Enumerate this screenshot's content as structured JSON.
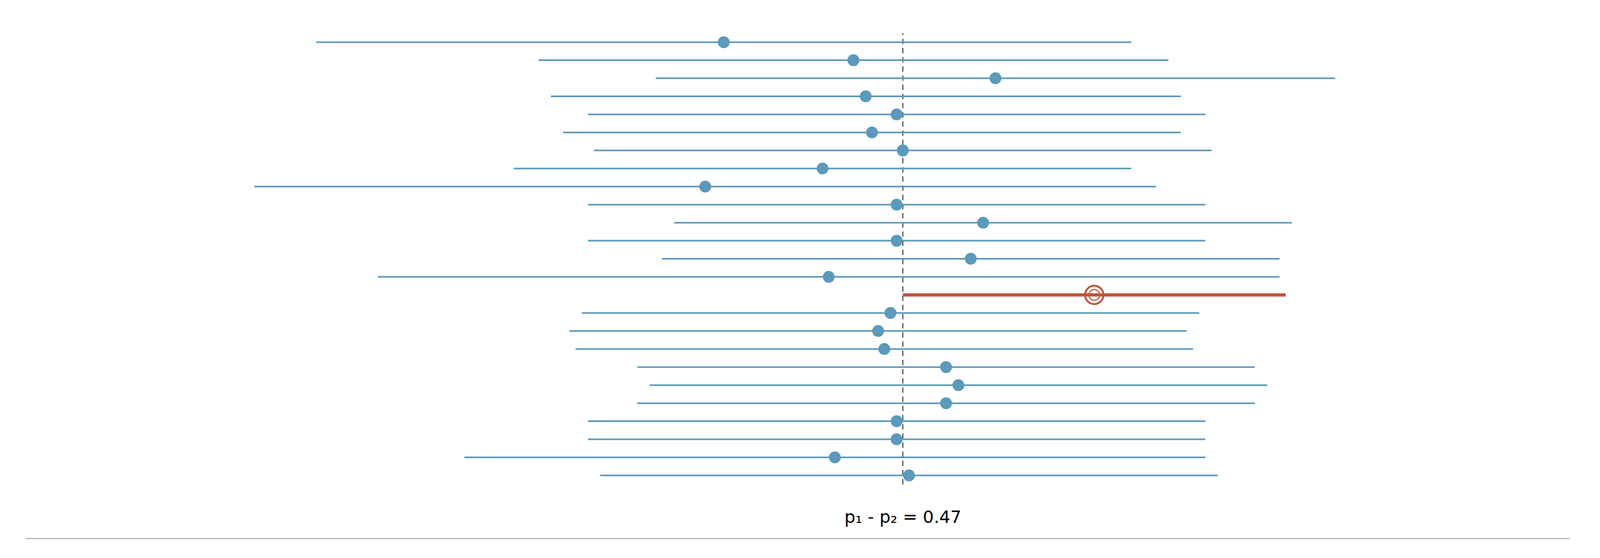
{
  "chart_data": {
    "type": "interval",
    "annotation": "p₁ - p₂ = 0.47",
    "values": [
      0.18,
      0.39,
      0.62,
      0.41,
      0.46,
      0.42,
      0.47,
      0.34,
      0.15,
      0.46,
      0.6,
      0.46,
      0.58,
      0.35,
      0.78,
      0.45,
      0.43,
      0.44,
      0.54,
      0.56,
      0.54,
      0.46,
      0.46,
      0.36,
      0.48
    ],
    "lower": [
      -0.48,
      -0.12,
      0.07,
      -0.1,
      -0.04,
      -0.08,
      -0.03,
      -0.16,
      -0.58,
      -0.04,
      0.1,
      -0.04,
      0.08,
      -0.38,
      0.47,
      -0.05,
      -0.07,
      -0.06,
      0.04,
      0.06,
      0.04,
      -0.04,
      -0.04,
      -0.24,
      -0.02
    ],
    "upper": [
      0.84,
      0.9,
      1.17,
      0.92,
      0.96,
      0.92,
      0.97,
      0.84,
      0.88,
      0.96,
      1.1,
      0.96,
      1.08,
      1.08,
      1.09,
      0.95,
      0.93,
      0.94,
      1.04,
      1.06,
      1.04,
      0.96,
      0.96,
      0.96,
      0.98
    ],
    "color": "#5b9aba",
    "colors": [
      "#5b9aba",
      "#5b9aba",
      "#5b9aba",
      "#5b9aba",
      "#5b9aba",
      "#5b9aba",
      "#5b9aba",
      "#5b9aba",
      "#5b9aba",
      "#5b9aba",
      "#5b9aba",
      "#5b9aba",
      "#5b9aba",
      "#5b9aba",
      "#c0523a",
      "#5b9aba",
      "#5b9aba",
      "#5b9aba",
      "#5b9aba",
      "#5b9aba",
      "#5b9aba",
      "#5b9aba",
      "#5b9aba",
      "#5b9aba",
      "#5b9aba"
    ],
    "reference_line": {
      "value": 0.47,
      "color": "#555555",
      "line_style": "dashed"
    },
    "xlim": [
      -0.95,
      1.55
    ],
    "tick_labels": false,
    "grid": false
  }
}
